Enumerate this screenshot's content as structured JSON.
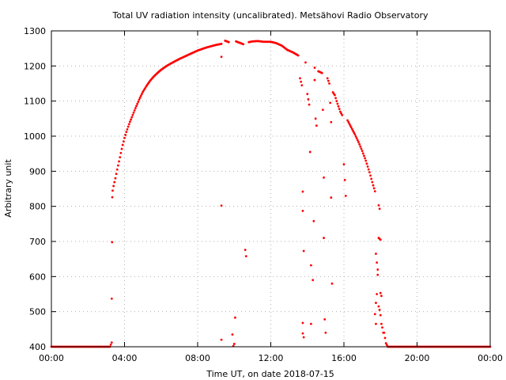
{
  "chart_data": {
    "type": "scatter",
    "title": "Total UV radiation intensity (uncalibrated). Metsähovi Radio Observatory",
    "xlabel": "Time UT, on date 2018-07-15",
    "ylabel": "Arbitrary unit",
    "x_unit": "hours UT",
    "xlim": [
      0,
      24
    ],
    "ylim": [
      400,
      1300
    ],
    "x_ticks": [
      {
        "value": 0,
        "label": "00:00"
      },
      {
        "value": 4,
        "label": "04:00"
      },
      {
        "value": 8,
        "label": "08:00"
      },
      {
        "value": 12,
        "label": "12:00"
      },
      {
        "value": 16,
        "label": "16:00"
      },
      {
        "value": 20,
        "label": "20:00"
      },
      {
        "value": 24,
        "label": "00:00"
      }
    ],
    "y_ticks": [
      400,
      500,
      600,
      700,
      800,
      900,
      1000,
      1100,
      1200,
      1300
    ],
    "grid": true,
    "legend": "none",
    "marker_color": "#ff0000",
    "series": [
      {
        "points": [
          [
            0.0,
            400
          ],
          [
            0.5,
            400
          ],
          [
            1.0,
            400
          ],
          [
            1.5,
            400
          ],
          [
            2.0,
            400
          ],
          [
            2.5,
            400
          ],
          [
            3.0,
            400
          ],
          [
            3.2,
            400
          ],
          [
            3.3,
            412
          ],
          [
            3.3,
            537
          ],
          [
            3.32,
            698
          ],
          [
            3.33,
            826
          ],
          [
            3.35,
            845
          ],
          [
            3.4,
            858
          ],
          [
            3.5,
            880
          ],
          [
            3.6,
            905
          ],
          [
            3.7,
            928
          ],
          [
            3.8,
            952
          ],
          [
            3.9,
            975
          ],
          [
            4.0,
            995
          ],
          [
            4.1,
            1012
          ],
          [
            4.2,
            1027
          ],
          [
            4.3,
            1041
          ],
          [
            4.4,
            1054
          ],
          [
            4.5,
            1067
          ],
          [
            4.6,
            1080
          ],
          [
            4.7,
            1092
          ],
          [
            4.8,
            1104
          ],
          [
            4.9,
            1115
          ],
          [
            5.0,
            1126
          ],
          [
            5.2,
            1143
          ],
          [
            5.4,
            1158
          ],
          [
            5.6,
            1170
          ],
          [
            5.8,
            1180
          ],
          [
            6.0,
            1189
          ],
          [
            6.3,
            1200
          ],
          [
            6.6,
            1209
          ],
          [
            7.0,
            1220
          ],
          [
            7.5,
            1232
          ],
          [
            8.0,
            1244
          ],
          [
            8.5,
            1253
          ],
          [
            9.0,
            1260
          ],
          [
            9.3,
            1263
          ],
          [
            9.3,
            1226
          ],
          [
            9.3,
            802
          ],
          [
            9.3,
            420
          ],
          [
            9.5,
            1272
          ],
          [
            9.7,
            1268
          ],
          [
            9.9,
            435
          ],
          [
            9.95,
            402
          ],
          [
            10.0,
            408
          ],
          [
            10.05,
            483
          ],
          [
            10.1,
            1270
          ],
          [
            10.3,
            1266
          ],
          [
            10.5,
            1262
          ],
          [
            10.6,
            676
          ],
          [
            10.65,
            658
          ],
          [
            10.8,
            1268
          ],
          [
            11.0,
            1270
          ],
          [
            11.3,
            1271
          ],
          [
            11.6,
            1269
          ],
          [
            12.0,
            1269
          ],
          [
            12.3,
            1265
          ],
          [
            12.6,
            1258
          ],
          [
            12.9,
            1246
          ],
          [
            13.2,
            1239
          ],
          [
            13.5,
            1230
          ],
          [
            13.6,
            1165
          ],
          [
            13.7,
            1145
          ],
          [
            13.75,
            842
          ],
          [
            13.75,
            787
          ],
          [
            13.8,
            673
          ],
          [
            13.75,
            468
          ],
          [
            13.75,
            438
          ],
          [
            13.8,
            427
          ],
          [
            13.9,
            1210
          ],
          [
            14.0,
            1120
          ],
          [
            14.1,
            1090
          ],
          [
            14.15,
            955
          ],
          [
            14.2,
            632
          ],
          [
            14.2,
            465
          ],
          [
            14.3,
            590
          ],
          [
            14.35,
            758
          ],
          [
            14.4,
            1195
          ],
          [
            14.4,
            1160
          ],
          [
            14.45,
            1050
          ],
          [
            14.5,
            1030
          ],
          [
            14.6,
            1185
          ],
          [
            14.8,
            1180
          ],
          [
            14.85,
            1075
          ],
          [
            14.9,
            882
          ],
          [
            14.9,
            710
          ],
          [
            14.95,
            478
          ],
          [
            15.0,
            440
          ],
          [
            15.1,
            1165
          ],
          [
            15.2,
            1150
          ],
          [
            15.25,
            1095
          ],
          [
            15.3,
            1040
          ],
          [
            15.3,
            825
          ],
          [
            15.35,
            580
          ],
          [
            15.4,
            1125
          ],
          [
            15.5,
            1117
          ],
          [
            15.6,
            1100
          ],
          [
            15.7,
            1085
          ],
          [
            15.8,
            1070
          ],
          [
            15.9,
            1060
          ],
          [
            16.0,
            920
          ],
          [
            16.05,
            875
          ],
          [
            16.1,
            830
          ],
          [
            16.2,
            1045
          ],
          [
            16.4,
            1025
          ],
          [
            16.6,
            1005
          ],
          [
            16.8,
            983
          ],
          [
            17.0,
            958
          ],
          [
            17.2,
            930
          ],
          [
            17.4,
            897
          ],
          [
            17.6,
            860
          ],
          [
            17.7,
            843
          ],
          [
            17.75,
            665
          ],
          [
            17.8,
            640
          ],
          [
            17.85,
            620
          ],
          [
            17.85,
            605
          ],
          [
            17.8,
            550
          ],
          [
            17.75,
            525
          ],
          [
            17.7,
            493
          ],
          [
            17.75,
            465
          ],
          [
            17.9,
            803
          ],
          [
            17.95,
            793
          ],
          [
            17.9,
            710
          ],
          [
            18.0,
            705
          ],
          [
            18.0,
            553
          ],
          [
            18.05,
            545
          ],
          [
            17.9,
            515
          ],
          [
            17.95,
            505
          ],
          [
            18.0,
            490
          ],
          [
            18.05,
            465
          ],
          [
            18.1,
            455
          ],
          [
            18.15,
            440
          ],
          [
            18.2,
            440
          ],
          [
            18.3,
            410
          ],
          [
            18.4,
            400
          ],
          [
            18.5,
            400
          ],
          [
            19.0,
            400
          ],
          [
            19.5,
            400
          ],
          [
            20.0,
            400
          ],
          [
            20.5,
            400
          ],
          [
            21.0,
            400
          ],
          [
            21.5,
            400
          ],
          [
            22.0,
            400
          ],
          [
            22.5,
            400
          ],
          [
            23.0,
            400
          ],
          [
            23.5,
            400
          ],
          [
            24.0,
            400
          ]
        ]
      }
    ]
  }
}
